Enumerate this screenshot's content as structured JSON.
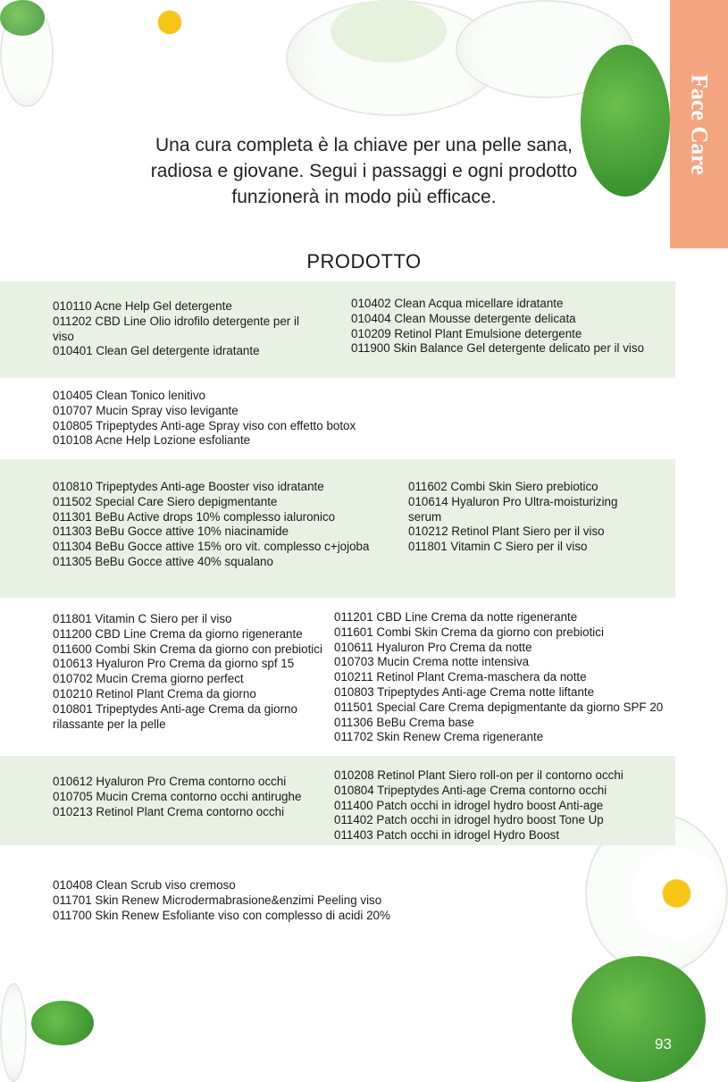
{
  "tab_label": "Face Care",
  "intro": "Una cura completa è la chiave per una pelle sana, radiosa e giovane. Segui i passaggi e ogni prodotto funzionerà in modo più efficace.",
  "section_title": "PRODOTTO",
  "page_number": "93",
  "colors": {
    "tab": "#f4a57f",
    "band": "#e9f1e4"
  },
  "groups": [
    {
      "left": [
        "010110 Acne Help Gel detergente",
        "011202 CBD Line Olio idrofilo detergente per il viso",
        "010401 Clean Gel detergente idratante"
      ],
      "right": [
        "010402 Clean Acqua micellare idratante",
        "010404 Clean Mousse detergente delicata",
        "010209 Retinol Plant Emulsione detergente",
        "011900 Skin Balance Gel detergente delicato per il viso"
      ]
    },
    {
      "left": [
        "010405 Clean Tonico lenitivo",
        "010707 Mucin Spray viso levigante",
        "010805 Tripeptydes Anti-age Spray viso con effetto botox",
        "010108 Acne Help Lozione esfoliante"
      ],
      "right": []
    },
    {
      "left": [
        "010810 Tripeptydes Anti-age Booster viso idratante",
        "011502 Special Care Siero depigmentante",
        "011301 BeBu Active drops 10% complesso ialuronico",
        "011303 BeBu Gocce attive 10% niacinamide",
        "011304 BeBu Gocce attive 15% oro vit. complesso c+jojoba",
        "011305 BeBu Gocce attive 40% squalano"
      ],
      "right": [
        "011602 Combi Skin Siero prebiotico",
        "010614 Hyaluron Pro Ultra-moisturizing serum",
        "010212 Retinol Plant Siero per il viso",
        "011801 Vitamin C Siero per il viso"
      ]
    },
    {
      "left": [
        "011801 Vitamin C Siero per il viso",
        "011200 CBD Line Crema da giorno rigenerante",
        "011600 Combi Skin Crema da giorno con prebiotici",
        "010613 Hyaluron Pro Crema da giorno spf 15",
        "010702 Mucin Crema giorno perfect",
        "010210 Retinol Plant Crema da giorno",
        "010801 Tripeptydes Anti-age Crema da giorno rilassante per la pelle"
      ],
      "right": [
        "011201 CBD Line Crema da notte rigenerante",
        "011601 Combi Skin Crema da giorno con prebiotici",
        "010611 Hyaluron Pro Crema da notte",
        "010703 Mucin Crema notte intensiva",
        "010211 Retinol Plant Crema-maschera da notte",
        "010803 Tripeptydes Anti-age Crema notte liftante",
        "011501 Special Care Crema depigmentante da giorno SPF 20",
        "011306 BeBu Crema base",
        "011702 Skin Renew Crema rigenerante"
      ]
    },
    {
      "left": [
        "010612 Hyaluron Pro Crema contorno occhi",
        "010705 Mucin Crema contorno occhi antirughe",
        "010213 Retinol Plant Crema contorno occhi"
      ],
      "right": [
        "010208 Retinol Plant Siero roll-on per il contorno occhi",
        "010804 Tripeptydes Anti-age Crema contorno occhi",
        "011400 Patch occhi in idrogel hydro boost Anti-age",
        "011402 Patch occhi in idrogel hydro boost Tone Up",
        "011403 Patch occhi in idrogel Hydro Boost"
      ]
    },
    {
      "left": [
        "010408 Clean Scrub viso cremoso",
        "011701 Skin Renew Microdermabrasione&enzimi Peeling viso",
        "011700 Skin Renew Esfoliante viso con complesso di acidi 20%"
      ],
      "right": []
    }
  ]
}
